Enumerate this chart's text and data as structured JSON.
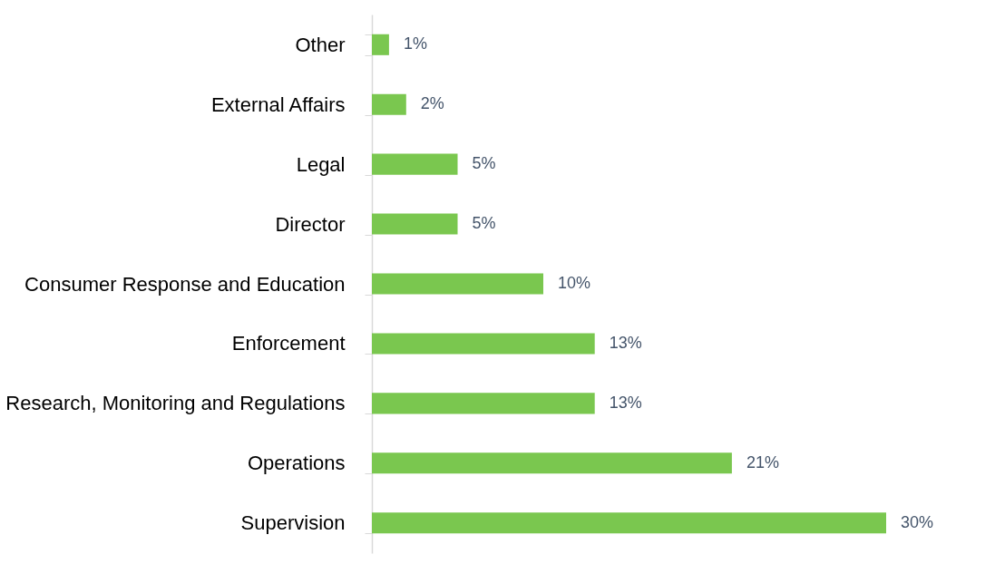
{
  "chart_data": {
    "type": "bar",
    "orientation": "horizontal",
    "categories": [
      "Other",
      "External Affairs",
      "Legal",
      "Director",
      "Consumer Response and Education",
      "Enforcement",
      "Research, Monitoring and Regulations",
      "Operations",
      "Supervision"
    ],
    "values": [
      1,
      2,
      5,
      5,
      10,
      13,
      13,
      21,
      30
    ],
    "color": "#7ac74f",
    "value_labels": [
      "1%",
      "2%",
      "5%",
      "5%",
      "10%",
      "13%",
      "13%",
      "21%",
      "30%"
    ],
    "grid": false
  }
}
